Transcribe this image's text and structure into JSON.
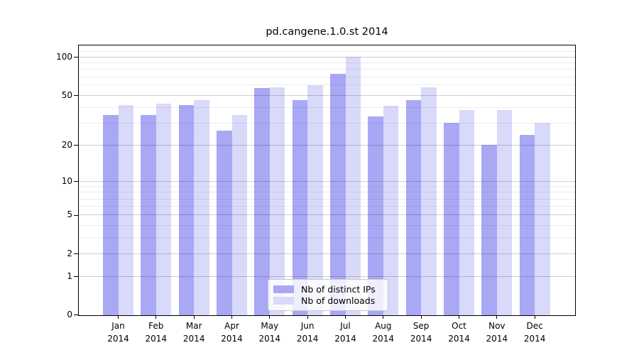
{
  "figure": {
    "title": "pd.cangene.1.0.st 2014"
  },
  "chart_data": {
    "type": "bar",
    "title": "pd.cangene.1.0.st 2014",
    "categories": [
      "Jan 2014",
      "Feb 2014",
      "Mar 2014",
      "Apr 2014",
      "May 2014",
      "Jun 2014",
      "Jul 2014",
      "Aug 2014",
      "Sep 2014",
      "Oct 2014",
      "Nov 2014",
      "Dec 2014"
    ],
    "series": [
      {
        "name": "Nb of distinct IPs",
        "color": "#a8a8f5",
        "values": [
          35,
          35,
          42,
          26,
          57,
          46,
          74,
          34,
          46,
          30,
          20,
          24
        ]
      },
      {
        "name": "Nb of downloads",
        "color": "#d9d9fa",
        "values": [
          42,
          43,
          46,
          35,
          58,
          60,
          100,
          41,
          58,
          38,
          38,
          30
        ]
      }
    ],
    "xlabel": "",
    "ylabel": "",
    "yscale": "log1p",
    "ylim": [
      0,
      123
    ],
    "yticks": [
      0,
      1,
      2,
      5,
      10,
      20,
      50,
      100
    ],
    "minor_yticks": [
      3,
      4,
      6,
      7,
      8,
      9,
      30,
      40,
      60,
      70,
      80,
      90,
      110,
      120
    ],
    "grid": "on",
    "legend_position": "lower center"
  },
  "legend": {
    "items": [
      {
        "label": "Nb of distinct IPs",
        "color": "#a8a8f5"
      },
      {
        "label": "Nb of downloads",
        "color": "#d9d9fa"
      }
    ]
  },
  "colors": {
    "bar_distinct_ips": "#a8a8f5",
    "bar_downloads": "#d9d9fa",
    "spine": "#000000",
    "grid_major": "rgba(0,0,0,0.185)",
    "grid_minor": "rgba(0,0,0,0.065)",
    "legend_border": "#c8c8c8",
    "legend_background": "rgba(255,255,255,0.8)"
  }
}
